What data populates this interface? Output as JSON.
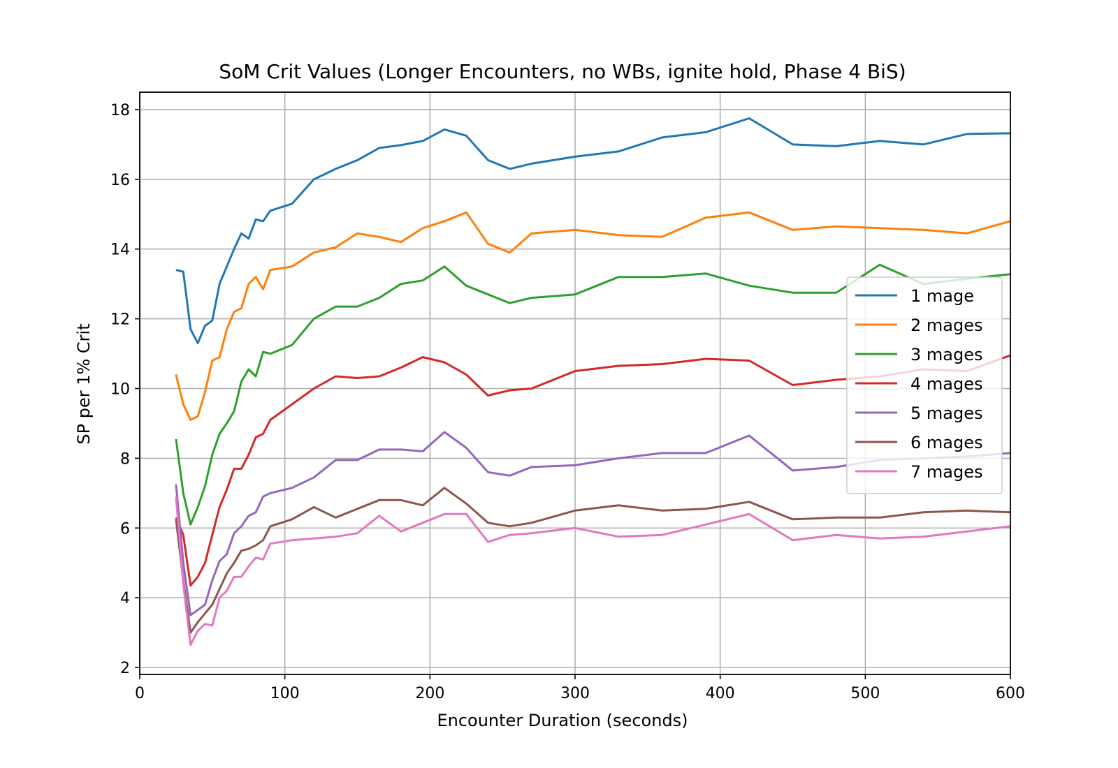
{
  "chart_data": {
    "type": "line",
    "title": "SoM Crit Values (Longer Encounters, no WBs, ignite hold, Phase 4 BiS)",
    "xlabel": "Encounter Duration (seconds)",
    "ylabel": "SP per 1% Crit",
    "xlim": [
      0,
      600
    ],
    "ylim": [
      1.8,
      18.5
    ],
    "xticks": [
      0,
      100,
      200,
      300,
      400,
      500,
      600
    ],
    "yticks": [
      2,
      4,
      6,
      8,
      10,
      12,
      14,
      16,
      18
    ],
    "grid": true,
    "legend_position": "center-right",
    "x": [
      25,
      30,
      35,
      40,
      45,
      50,
      55,
      60,
      65,
      70,
      75,
      80,
      85,
      90,
      105,
      120,
      135,
      150,
      165,
      180,
      195,
      210,
      225,
      240,
      255,
      270,
      300,
      330,
      360,
      390,
      420,
      450,
      480,
      510,
      540,
      570,
      600
    ],
    "series": [
      {
        "name": "1 mage",
        "color": "#1f77b4",
        "values": [
          13.4,
          13.35,
          11.7,
          11.3,
          11.8,
          11.95,
          13.0,
          13.5,
          14.0,
          14.45,
          14.3,
          14.85,
          14.8,
          15.1,
          15.3,
          16.0,
          16.3,
          16.55,
          16.9,
          16.98,
          17.1,
          17.43,
          17.25,
          16.55,
          16.3,
          16.45,
          16.65,
          16.8,
          17.2,
          17.35,
          17.75,
          17.0,
          16.95,
          17.1,
          17.0,
          17.3,
          17.32
        ]
      },
      {
        "name": "2 mages",
        "color": "#ff7f0e",
        "values": [
          10.4,
          9.55,
          9.1,
          9.2,
          9.9,
          10.8,
          10.9,
          11.7,
          12.2,
          12.3,
          13.0,
          13.2,
          12.85,
          13.4,
          13.5,
          13.9,
          14.05,
          14.45,
          14.35,
          14.2,
          14.6,
          14.8,
          15.05,
          14.15,
          13.9,
          14.45,
          14.55,
          14.4,
          14.35,
          14.9,
          15.05,
          14.55,
          14.65,
          14.6,
          14.55,
          14.45,
          14.8
        ]
      },
      {
        "name": "3 mages",
        "color": "#2ca02c",
        "values": [
          8.55,
          7.0,
          6.1,
          6.6,
          7.2,
          8.1,
          8.7,
          9.0,
          9.35,
          10.2,
          10.55,
          10.35,
          11.05,
          11.0,
          11.25,
          12.0,
          12.35,
          12.35,
          12.6,
          13.0,
          13.1,
          13.5,
          12.95,
          12.7,
          12.45,
          12.6,
          12.7,
          13.2,
          13.2,
          13.3,
          12.95,
          12.75,
          12.75,
          13.55,
          13.0,
          13.15,
          13.28
        ]
      },
      {
        "name": "4 mages",
        "color": "#d62728",
        "values": [
          6.3,
          5.8,
          4.35,
          4.6,
          5.0,
          5.8,
          6.6,
          7.1,
          7.7,
          7.7,
          8.1,
          8.6,
          8.7,
          9.1,
          9.55,
          10.0,
          10.35,
          10.3,
          10.35,
          10.6,
          10.9,
          10.75,
          10.4,
          9.8,
          9.95,
          10.0,
          10.5,
          10.65,
          10.7,
          10.85,
          10.8,
          10.1,
          10.25,
          10.35,
          10.55,
          10.5,
          10.95
        ]
      },
      {
        "name": "5 mages",
        "color": "#9467bd",
        "values": [
          7.25,
          5.0,
          3.5,
          3.65,
          3.8,
          4.5,
          5.05,
          5.25,
          5.85,
          6.05,
          6.35,
          6.45,
          6.9,
          7.0,
          7.15,
          7.45,
          7.95,
          7.95,
          8.25,
          8.25,
          8.2,
          8.75,
          8.3,
          7.6,
          7.5,
          7.75,
          7.8,
          8.0,
          8.15,
          8.15,
          8.65,
          7.65,
          7.75,
          7.95,
          8.0,
          8.05,
          8.15
        ]
      },
      {
        "name": "6 mages",
        "color": "#8c564b",
        "values": [
          6.25,
          4.5,
          3.0,
          3.3,
          3.55,
          3.8,
          4.25,
          4.7,
          5.0,
          5.35,
          5.4,
          5.5,
          5.65,
          6.05,
          6.25,
          6.6,
          6.3,
          6.55,
          6.8,
          6.8,
          6.65,
          7.15,
          6.7,
          6.15,
          6.05,
          6.15,
          6.5,
          6.65,
          6.5,
          6.55,
          6.75,
          6.25,
          6.3,
          6.3,
          6.45,
          6.5,
          6.45
        ]
      },
      {
        "name": "7 mages",
        "color": "#e377c2",
        "values": [
          6.9,
          4.4,
          2.65,
          3.05,
          3.25,
          3.2,
          4.0,
          4.2,
          4.6,
          4.6,
          4.9,
          5.15,
          5.1,
          5.55,
          5.65,
          5.7,
          5.75,
          5.85,
          6.35,
          5.9,
          6.15,
          6.4,
          6.4,
          5.6,
          5.8,
          5.85,
          6.0,
          5.75,
          5.8,
          6.1,
          6.4,
          5.65,
          5.8,
          5.7,
          5.75,
          5.9,
          6.05
        ]
      }
    ]
  }
}
